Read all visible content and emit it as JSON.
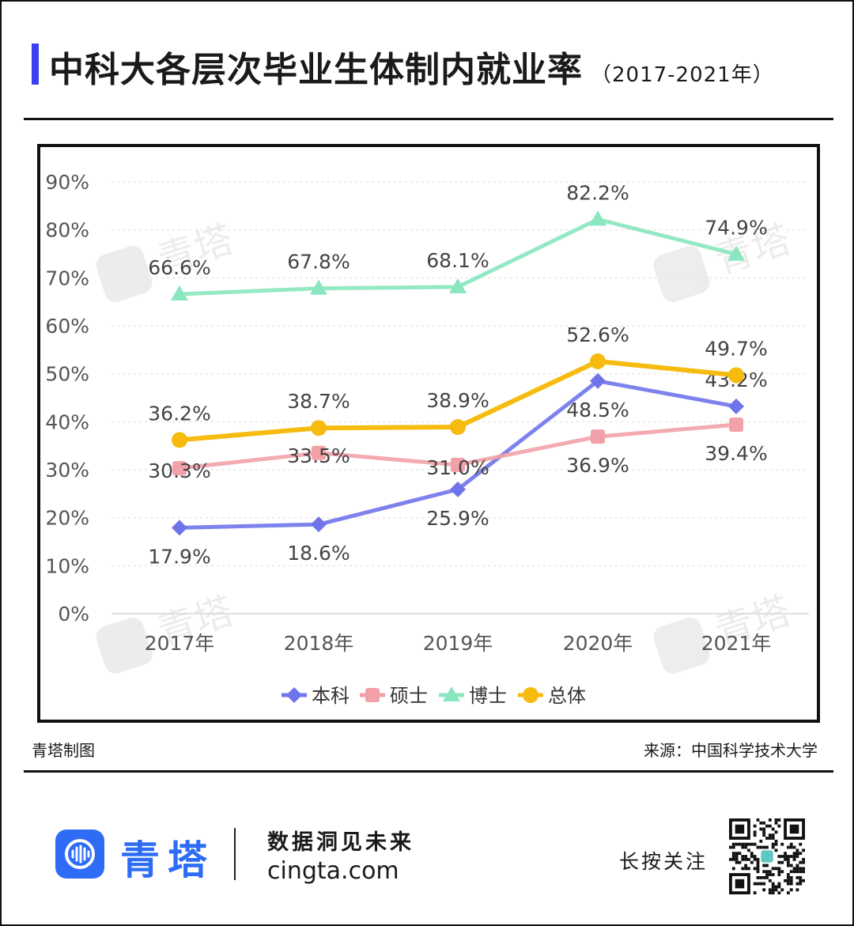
{
  "title": "中科大各层次毕业生体制内就业率",
  "subtitle": "（2017-2021年）",
  "footer": {
    "left": "青塔制图",
    "right": "来源：中国科学技术大学"
  },
  "brand": {
    "name": "青塔",
    "slogan": "数据洞见未来",
    "url": "cingta.com",
    "follow": "长按关注"
  },
  "watermark": "青塔",
  "chart_data": {
    "type": "line",
    "categories": [
      "2017年",
      "2018年",
      "2019年",
      "2020年",
      "2021年"
    ],
    "ylim": [
      0,
      90
    ],
    "yticks": [
      "0%",
      "10%",
      "20%",
      "30%",
      "40%",
      "50%",
      "60%",
      "70%",
      "80%",
      "90%"
    ],
    "grid": true,
    "legend": "bottom",
    "series": [
      {
        "name": "本科",
        "color": "#6f74ea",
        "marker": "diamond",
        "values": [
          17.9,
          18.6,
          25.9,
          48.5,
          43.2
        ],
        "labels": [
          "17.9%",
          "18.6%",
          "25.9%",
          "48.5%",
          "43.2%"
        ],
        "label_pos": [
          "below",
          "below",
          "below",
          "below",
          "above"
        ]
      },
      {
        "name": "硕士",
        "color": "#f2a1a8",
        "marker": "square",
        "values": [
          30.3,
          33.5,
          31.0,
          36.9,
          39.4
        ],
        "labels": [
          "30.3%",
          "33.5%",
          "31.0%",
          "36.9%",
          "39.4%"
        ],
        "label_pos": [
          "same",
          "same",
          "same",
          "below",
          "below"
        ]
      },
      {
        "name": "博士",
        "color": "#8ae6be",
        "marker": "triangle",
        "values": [
          66.6,
          67.8,
          68.1,
          82.2,
          74.9
        ],
        "labels": [
          "66.6%",
          "67.8%",
          "68.1%",
          "82.2%",
          "74.9%"
        ],
        "label_pos": [
          "above",
          "above",
          "above",
          "above",
          "above"
        ]
      },
      {
        "name": "总体",
        "color": "#f6bb0e",
        "marker": "circle",
        "values": [
          36.2,
          38.7,
          38.9,
          52.6,
          49.7
        ],
        "labels": [
          "36.2%",
          "38.7%",
          "38.9%",
          "52.6%",
          "49.7%"
        ],
        "label_pos": [
          "above",
          "above",
          "above",
          "above",
          "above"
        ]
      }
    ]
  }
}
